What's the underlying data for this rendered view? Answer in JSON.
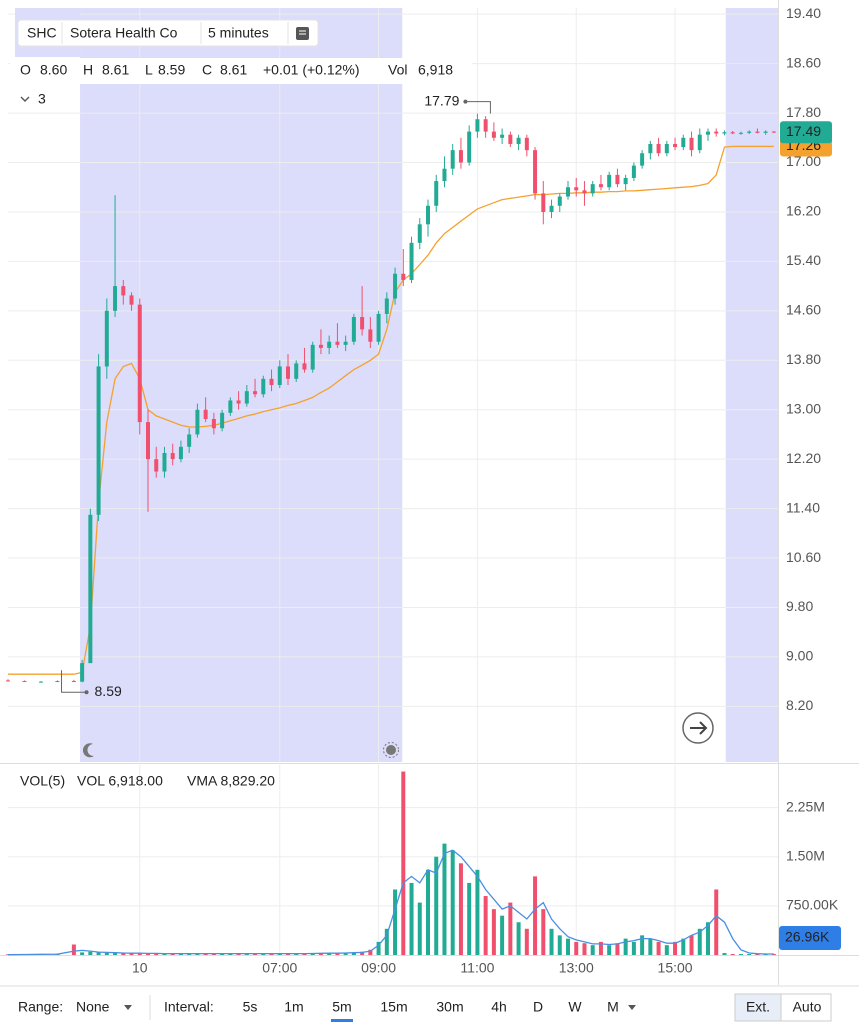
{
  "header": {
    "symbol": "SHC",
    "name": "Sotera Health Co",
    "interval": "5 minutes",
    "o_key": "O",
    "o": "8.60",
    "h_key": "H",
    "h": "8.61",
    "l_key": "L",
    "l": "8.59",
    "c_key": "C",
    "c": "8.61",
    "change": "+0.01 (+0.12%)",
    "vol_key": "Vol",
    "vol": "6,918",
    "collapsed_count": "3",
    "vol_title": "VOL(5)",
    "vol_value": "VOL 6,918.00",
    "vma_value": "VMA 8,829.20"
  },
  "toolbar": {
    "range_label": "Range:",
    "range_value": "None",
    "interval_label": "Interval:",
    "intervals": [
      "5s",
      "1m",
      "5m",
      "15m",
      "30m",
      "4h",
      "D",
      "W",
      "M"
    ],
    "active_interval": 2,
    "ext": "Ext.",
    "auto": "Auto"
  },
  "chart_data": [
    {
      "type": "candlestick",
      "up_color": "#22ab94",
      "down_color": "#f0506e",
      "overlay_color": "#f5a12e",
      "session_color": "#dcdcfb",
      "xlim": [
        0,
        187
      ],
      "ylim": [
        7.3,
        19.5
      ],
      "xticks": [
        {
          "value": 32,
          "label": "10"
        },
        {
          "value": 66,
          "label": "07:00"
        },
        {
          "value": 90,
          "label": "09:00"
        },
        {
          "value": 114,
          "label": "11:00"
        },
        {
          "value": 138,
          "label": "13:00"
        },
        {
          "value": 162,
          "label": "15:00"
        }
      ],
      "yticks": [
        {
          "value": 8.2,
          "label": "8.20"
        },
        {
          "value": 9,
          "label": "9.00"
        },
        {
          "value": 9.8,
          "label": "9.80"
        },
        {
          "value": 10.6,
          "label": "10.60"
        },
        {
          "value": 11.4,
          "label": "11.40"
        },
        {
          "value": 12.2,
          "label": "12.20"
        },
        {
          "value": 13,
          "label": "13.00"
        },
        {
          "value": 13.8,
          "label": "13.80"
        },
        {
          "value": 14.6,
          "label": "14.60"
        },
        {
          "value": 15.4,
          "label": "15.40"
        },
        {
          "value": 16.2,
          "label": "16.20"
        },
        {
          "value": 17,
          "label": "17.00"
        },
        {
          "value": 17.8,
          "label": "17.80"
        },
        {
          "value": 18.6,
          "label": "18.60"
        },
        {
          "value": 19.4,
          "label": "19.40"
        }
      ],
      "grid": true,
      "sessions": [
        [
          17.5,
          95.75
        ],
        [
          174.3,
          187
        ]
      ],
      "annotations": [
        {
          "x": 114,
          "y": 17.79
        },
        {
          "x": 13,
          "y": 8.59
        }
      ],
      "x": [
        0,
        4,
        8,
        12,
        16,
        18,
        20,
        22,
        24,
        26,
        28,
        30,
        32,
        34,
        36,
        38,
        40,
        42,
        44,
        46,
        48,
        50,
        52,
        54,
        56,
        58,
        60,
        62,
        64,
        66,
        68,
        70,
        72,
        74,
        76,
        78,
        80,
        82,
        84,
        86,
        88,
        90,
        92,
        94,
        96,
        98,
        100,
        102,
        104,
        106,
        108,
        110,
        112,
        114,
        116,
        118,
        120,
        122,
        124,
        126,
        128,
        130,
        132,
        134,
        136,
        138,
        140,
        142,
        144,
        146,
        148,
        150,
        152,
        154,
        156,
        158,
        160,
        162,
        164,
        166,
        168,
        170,
        172,
        174,
        176,
        178,
        180,
        182,
        184,
        186
      ],
      "ohlc": [
        [
          8.62,
          8.64,
          8.6,
          8.61
        ],
        [
          8.61,
          8.62,
          8.6,
          8.6
        ],
        [
          8.6,
          8.61,
          8.59,
          8.6
        ],
        [
          8.6,
          8.62,
          8.6,
          8.61
        ],
        [
          8.61,
          8.63,
          8.6,
          8.6
        ],
        [
          8.6,
          8.95,
          8.59,
          8.9
        ],
        [
          8.9,
          11.4,
          8.9,
          11.3
        ],
        [
          11.3,
          13.9,
          11.2,
          13.7
        ],
        [
          13.7,
          14.8,
          13.5,
          14.6
        ],
        [
          14.6,
          16.47,
          14.5,
          15.0
        ],
        [
          15.0,
          15.1,
          14.7,
          14.85
        ],
        [
          14.85,
          14.9,
          14.6,
          14.7
        ],
        [
          14.7,
          14.8,
          12.6,
          12.8
        ],
        [
          12.8,
          13.0,
          11.35,
          12.2
        ],
        [
          12.2,
          12.4,
          11.9,
          12.0
        ],
        [
          12.0,
          12.4,
          11.9,
          12.3
        ],
        [
          12.3,
          12.45,
          12.1,
          12.2
        ],
        [
          12.2,
          12.5,
          12.15,
          12.4
        ],
        [
          12.4,
          12.7,
          12.3,
          12.6
        ],
        [
          12.6,
          13.1,
          12.55,
          13.0
        ],
        [
          13.0,
          13.2,
          12.8,
          12.85
        ],
        [
          12.85,
          12.95,
          12.6,
          12.7
        ],
        [
          12.7,
          13.0,
          12.65,
          12.95
        ],
        [
          12.95,
          13.2,
          12.9,
          13.15
        ],
        [
          13.15,
          13.3,
          13.0,
          13.1
        ],
        [
          13.1,
          13.4,
          13.05,
          13.3
        ],
        [
          13.3,
          13.5,
          13.2,
          13.25
        ],
        [
          13.25,
          13.55,
          13.2,
          13.5
        ],
        [
          13.5,
          13.65,
          13.3,
          13.4
        ],
        [
          13.4,
          13.8,
          13.35,
          13.7
        ],
        [
          13.7,
          13.9,
          13.4,
          13.5
        ],
        [
          13.5,
          13.8,
          13.45,
          13.75
        ],
        [
          13.75,
          14.0,
          13.6,
          13.65
        ],
        [
          13.65,
          14.1,
          13.6,
          14.05
        ],
        [
          14.05,
          14.3,
          13.9,
          14.0
        ],
        [
          14.0,
          14.2,
          13.9,
          14.1
        ],
        [
          14.1,
          14.4,
          14.0,
          14.05
        ],
        [
          14.05,
          14.2,
          13.95,
          14.1
        ],
        [
          14.1,
          14.55,
          14.05,
          14.5
        ],
        [
          14.5,
          15.0,
          14.2,
          14.3
        ],
        [
          14.3,
          14.5,
          14.0,
          14.1
        ],
        [
          14.1,
          14.6,
          14.05,
          14.55
        ],
        [
          14.55,
          14.9,
          14.4,
          14.8
        ],
        [
          14.8,
          15.3,
          14.7,
          15.2
        ],
        [
          15.2,
          15.6,
          15.0,
          15.1
        ],
        [
          15.1,
          15.8,
          15.05,
          15.7
        ],
        [
          15.7,
          16.1,
          15.6,
          16.0
        ],
        [
          16.0,
          16.4,
          15.8,
          16.3
        ],
        [
          16.3,
          16.8,
          16.2,
          16.7
        ],
        [
          16.7,
          17.1,
          16.6,
          16.9
        ],
        [
          16.9,
          17.3,
          16.8,
          17.2
        ],
        [
          17.2,
          17.4,
          16.9,
          17.0
        ],
        [
          17.0,
          17.6,
          16.95,
          17.5
        ],
        [
          17.5,
          17.79,
          17.4,
          17.7
        ],
        [
          17.7,
          17.75,
          17.4,
          17.5
        ],
        [
          17.5,
          17.65,
          17.35,
          17.4
        ],
        [
          17.4,
          17.55,
          17.3,
          17.45
        ],
        [
          17.45,
          17.5,
          17.25,
          17.3
        ],
        [
          17.3,
          17.45,
          17.2,
          17.4
        ],
        [
          17.4,
          17.45,
          17.1,
          17.2
        ],
        [
          17.2,
          17.25,
          16.4,
          16.5
        ],
        [
          16.5,
          16.7,
          16.0,
          16.2
        ],
        [
          16.2,
          16.4,
          16.1,
          16.3
        ],
        [
          16.3,
          16.5,
          16.2,
          16.45
        ],
        [
          16.45,
          16.7,
          16.4,
          16.6
        ],
        [
          16.6,
          16.75,
          16.45,
          16.55
        ],
        [
          16.55,
          16.7,
          16.3,
          16.5
        ],
        [
          16.5,
          16.7,
          16.45,
          16.65
        ],
        [
          16.65,
          16.8,
          16.55,
          16.6
        ],
        [
          16.6,
          16.85,
          16.55,
          16.8
        ],
        [
          16.8,
          16.9,
          16.6,
          16.65
        ],
        [
          16.65,
          16.8,
          16.55,
          16.75
        ],
        [
          16.75,
          17.0,
          16.7,
          16.95
        ],
        [
          16.95,
          17.2,
          16.9,
          17.15
        ],
        [
          17.15,
          17.35,
          17.05,
          17.3
        ],
        [
          17.3,
          17.4,
          17.1,
          17.15
        ],
        [
          17.15,
          17.35,
          17.1,
          17.3
        ],
        [
          17.3,
          17.4,
          17.2,
          17.25
        ],
        [
          17.25,
          17.45,
          17.2,
          17.4
        ],
        [
          17.4,
          17.5,
          17.1,
          17.2
        ],
        [
          17.2,
          17.55,
          17.15,
          17.45
        ],
        [
          17.45,
          17.55,
          17.35,
          17.5
        ],
        [
          17.5,
          17.55,
          17.42,
          17.47
        ],
        [
          17.47,
          17.52,
          17.44,
          17.49
        ],
        [
          17.49,
          17.51,
          17.46,
          17.47
        ],
        [
          17.47,
          17.5,
          17.45,
          17.48
        ],
        [
          17.48,
          17.52,
          17.46,
          17.5
        ],
        [
          17.5,
          17.55,
          17.47,
          17.48
        ],
        [
          17.48,
          17.52,
          17.45,
          17.5
        ],
        [
          17.5,
          17.51,
          17.48,
          17.49
        ]
      ],
      "overlay": [
        8.72,
        8.72,
        8.72,
        8.72,
        8.72,
        8.75,
        9.5,
        11.5,
        12.8,
        13.5,
        13.7,
        13.75,
        13.5,
        13.0,
        12.9,
        12.85,
        12.8,
        12.75,
        12.72,
        12.72,
        12.73,
        12.75,
        12.78,
        12.82,
        12.86,
        12.9,
        12.93,
        12.97,
        13.0,
        13.03,
        13.07,
        13.1,
        13.15,
        13.2,
        13.28,
        13.35,
        13.45,
        13.55,
        13.65,
        13.72,
        13.8,
        13.9,
        14.3,
        14.9,
        15.1,
        15.2,
        15.35,
        15.5,
        15.7,
        15.85,
        15.95,
        16.05,
        16.15,
        16.25,
        16.3,
        16.35,
        16.4,
        16.42,
        16.44,
        16.46,
        16.48,
        16.48,
        16.49,
        16.5,
        16.5,
        16.51,
        16.51,
        16.52,
        16.52,
        16.53,
        16.53,
        16.54,
        16.54,
        16.55,
        16.56,
        16.57,
        16.58,
        16.59,
        16.6,
        16.61,
        16.63,
        16.66,
        16.8,
        17.25,
        17.26,
        17.26,
        17.26,
        17.26,
        17.26,
        17.26
      ]
    },
    {
      "type": "bar",
      "vma_color": "#4a90e2",
      "last_label": "26.96K",
      "xlim": [
        0,
        187
      ],
      "ylim": [
        0,
        2900000
      ],
      "yticks": [
        {
          "value": 750000,
          "label": "750.00K"
        },
        {
          "value": 1500000,
          "label": "1.50M"
        },
        {
          "value": 2250000,
          "label": "2.25M"
        }
      ],
      "x": [
        0,
        4,
        8,
        12,
        16,
        18,
        20,
        22,
        24,
        26,
        28,
        30,
        32,
        34,
        36,
        38,
        40,
        42,
        44,
        46,
        48,
        50,
        52,
        54,
        56,
        58,
        60,
        62,
        64,
        66,
        68,
        70,
        72,
        74,
        76,
        78,
        80,
        82,
        84,
        86,
        88,
        90,
        92,
        94,
        96,
        98,
        100,
        102,
        104,
        106,
        108,
        110,
        112,
        114,
        116,
        118,
        120,
        122,
        124,
        126,
        128,
        130,
        132,
        134,
        136,
        138,
        140,
        142,
        144,
        146,
        148,
        150,
        152,
        154,
        156,
        158,
        160,
        162,
        164,
        166,
        168,
        170,
        172,
        174,
        176,
        178,
        180,
        182,
        184,
        186
      ],
      "values": [
        10000,
        15000,
        8000,
        20000,
        160000,
        40000,
        50000,
        45000,
        35000,
        30000,
        30000,
        25000,
        30000,
        20000,
        25000,
        20000,
        20000,
        25000,
        20000,
        20000,
        20000,
        25000,
        20000,
        20000,
        20000,
        25000,
        20000,
        20000,
        25000,
        20000,
        20000,
        25000,
        20000,
        25000,
        30000,
        25000,
        30000,
        30000,
        40000,
        50000,
        80000,
        200000,
        400000,
        1000000,
        2800000,
        1100000,
        800000,
        1300000,
        1500000,
        1700000,
        1600000,
        1400000,
        1100000,
        1300000,
        900000,
        700000,
        600000,
        800000,
        500000,
        400000,
        1200000,
        700000,
        400000,
        300000,
        250000,
        200000,
        180000,
        150000,
        200000,
        150000,
        180000,
        250000,
        200000,
        300000,
        250000,
        200000,
        150000,
        200000,
        250000,
        300000,
        400000,
        500000,
        1000000,
        30000,
        15000,
        15000,
        15000,
        15000,
        15000,
        15000
      ],
      "vma": [
        5000,
        8000,
        10000,
        12000,
        60000,
        70000,
        60000,
        45000,
        40000,
        35000,
        31000,
        28000,
        27000,
        25000,
        24000,
        22000,
        21000,
        22000,
        21000,
        21000,
        21000,
        22000,
        21000,
        21000,
        21000,
        22000,
        21000,
        21000,
        22000,
        21000,
        21000,
        22000,
        21000,
        23000,
        26000,
        27000,
        28000,
        30000,
        35000,
        40000,
        60000,
        150000,
        300000,
        700000,
        1100000,
        1200000,
        1100000,
        1300000,
        1250000,
        1550000,
        1600000,
        1500000,
        1350000,
        1200000,
        1000000,
        850000,
        700000,
        750000,
        650000,
        550000,
        700000,
        800000,
        550000,
        400000,
        280000,
        230000,
        200000,
        170000,
        170000,
        160000,
        170000,
        200000,
        220000,
        250000,
        250000,
        220000,
        180000,
        180000,
        230000,
        300000,
        350000,
        450000,
        600000,
        500000,
        250000,
        80000,
        30000,
        20000,
        15000,
        15000
      ]
    }
  ]
}
